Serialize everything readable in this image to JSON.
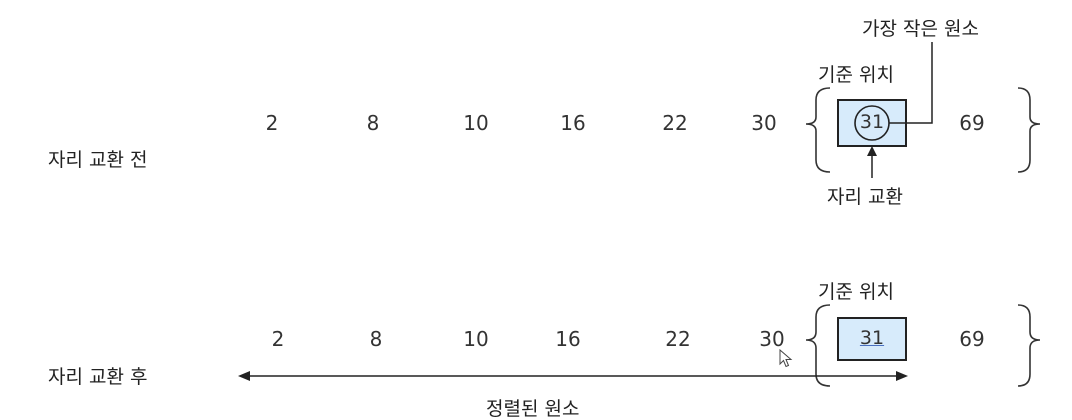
{
  "before": {
    "label": "자리 교환 전",
    "numbers": [
      "2",
      "8",
      "10",
      "16",
      "22",
      "30"
    ],
    "pivot_value": "31",
    "after_value": "69",
    "annotations": {
      "smallest": "가장 작은 원소",
      "pivot_position": "기준 위치",
      "swap": "자리 교환"
    }
  },
  "after": {
    "label": "자리 교환 후",
    "numbers": [
      "2",
      "8",
      "10",
      "16",
      "22",
      "30"
    ],
    "pivot_value": "31",
    "after_value": "69",
    "annotations": {
      "pivot_position": "기준 위치",
      "sorted": "정렬된 원소"
    }
  },
  "colors": {
    "box_fill": "#d7ebfb",
    "box_border": "#222222",
    "line": "#222222"
  }
}
